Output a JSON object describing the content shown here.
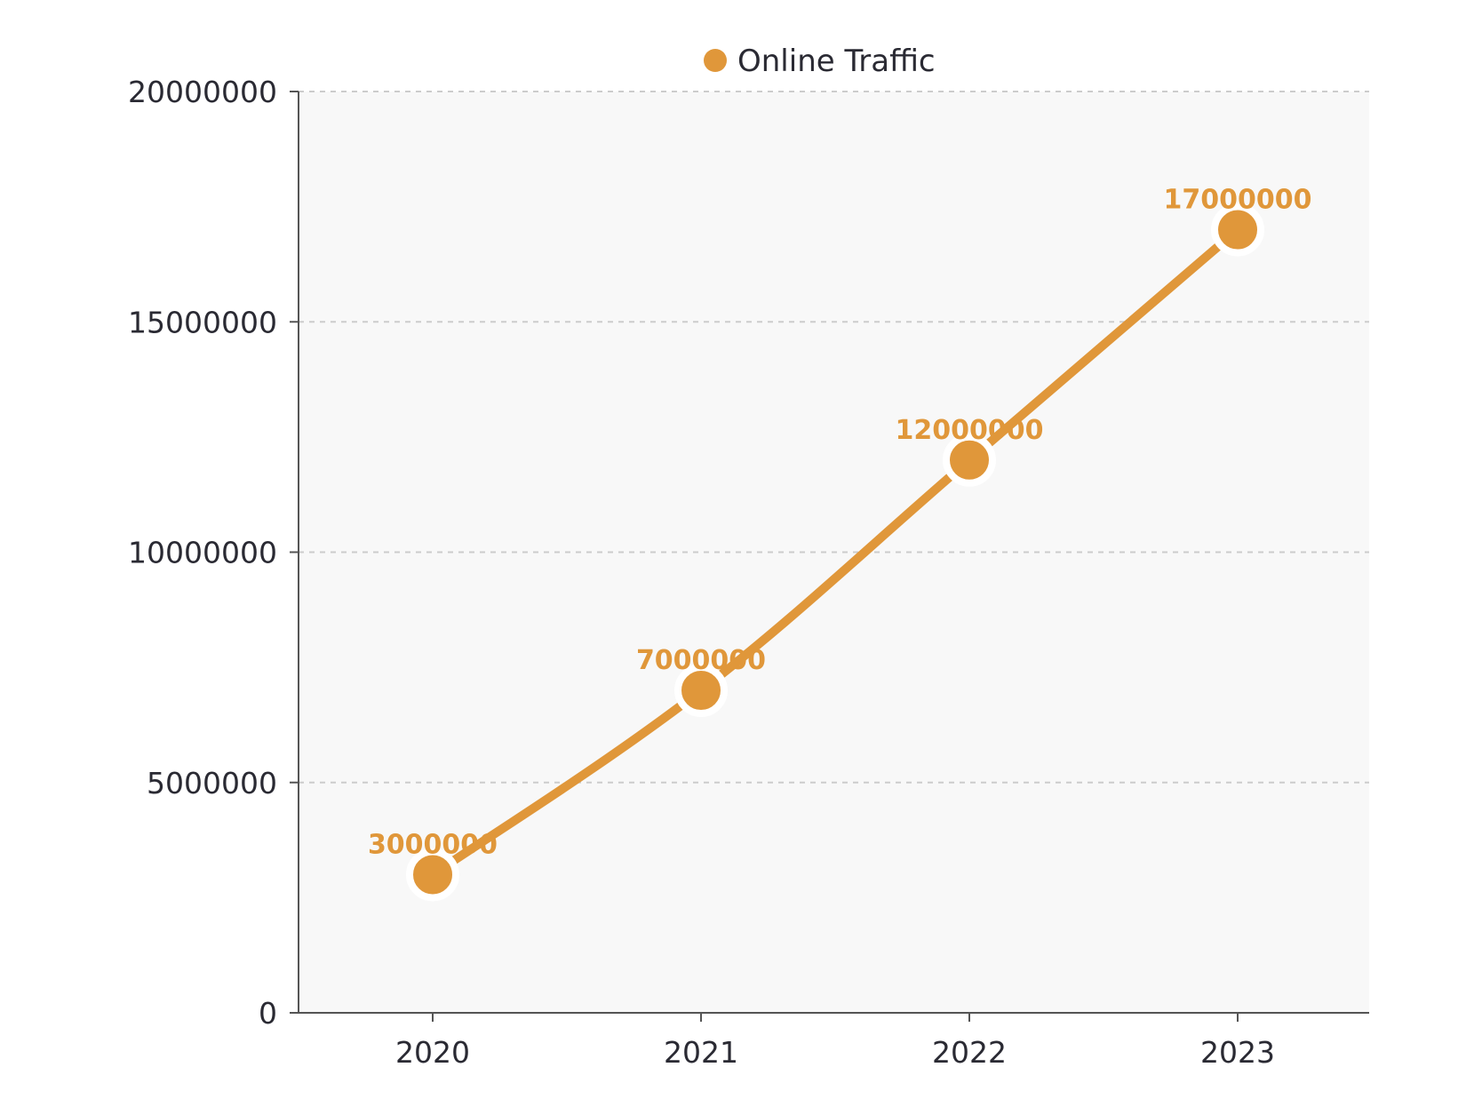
{
  "chart_data": {
    "type": "line",
    "categories": [
      "2020",
      "2021",
      "2022",
      "2023"
    ],
    "series": [
      {
        "name": "Online Traffic",
        "values": [
          3000000,
          7000000,
          12000000,
          17000000
        ],
        "color": "#E0973A"
      }
    ],
    "ylim": [
      0,
      20000000
    ],
    "yticks": [
      "0",
      "5000000",
      "10000000",
      "15000000",
      "20000000"
    ],
    "title": "",
    "xlabel": "",
    "ylabel": "",
    "grid": "horizontal dashed",
    "legend_position": "top-center",
    "data_labels": true
  },
  "colors": {
    "plot_background": "#F8F8F8",
    "grid": "#CCCCCC",
    "axis": "#555555",
    "text": "#2A2A33"
  }
}
